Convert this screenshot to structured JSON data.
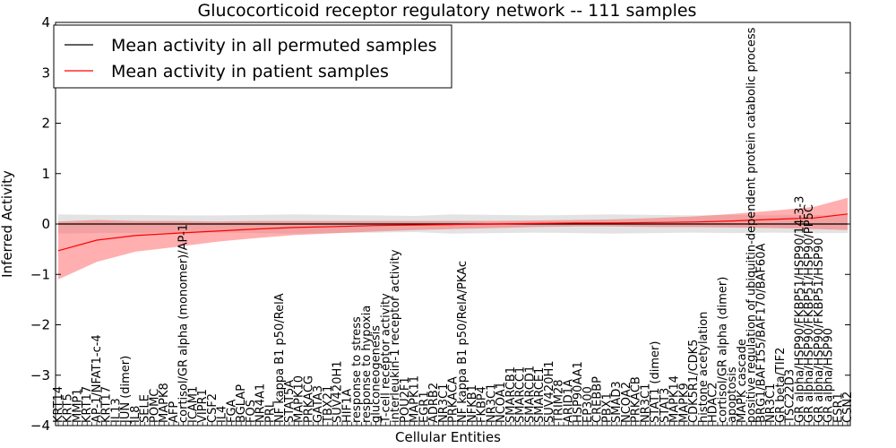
{
  "chart_data": {
    "type": "line",
    "title": "Glucocorticoid receptor regulatory network -- 111 samples",
    "xlabel": "Cellular Entities",
    "ylabel": "Inferred Activity",
    "ylim": [
      -4,
      4
    ],
    "yticks": [
      "−4",
      "−3",
      "−2",
      "−1",
      "0",
      "1",
      "2",
      "3",
      "4"
    ],
    "grid": false,
    "legend_position": "top-left",
    "n_entities": 165,
    "zero_line": "dotted",
    "entity_labels": [
      {
        "i": 0,
        "text": "KRT14"
      },
      {
        "i": 2,
        "text": "KRT5"
      },
      {
        "i": 4,
        "text": "MMP1"
      },
      {
        "i": 6,
        "text": "KRT17"
      },
      {
        "i": 8,
        "text": "AP-1/NFAT1-c-4"
      },
      {
        "i": 10,
        "text": "KRT17"
      },
      {
        "i": 12,
        "text": "IL13"
      },
      {
        "i": 14,
        "text": "JUN (dimer)"
      },
      {
        "i": 16,
        "text": "IL8"
      },
      {
        "i": 18,
        "text": "SELE"
      },
      {
        "i": 20,
        "text": "POMC"
      },
      {
        "i": 22,
        "text": "MAPK8"
      },
      {
        "i": 24,
        "text": "AFP"
      },
      {
        "i": 26,
        "text": "cortisol/GR alpha (monomer)/AP-1"
      },
      {
        "i": 28,
        "text": "ICAM1"
      },
      {
        "i": 30,
        "text": "VIPR1"
      },
      {
        "i": 32,
        "text": "CSF2"
      },
      {
        "i": 34,
        "text": "IL4"
      },
      {
        "i": 36,
        "text": "FGA"
      },
      {
        "i": 38,
        "text": "BGLAP"
      },
      {
        "i": 40,
        "text": "FOS"
      },
      {
        "i": 42,
        "text": "NR4A1"
      },
      {
        "i": 44,
        "text": "PRL"
      },
      {
        "i": 46,
        "text": "NF kappa B1 p50/RelA"
      },
      {
        "i": 48,
        "text": "STAT5A"
      },
      {
        "i": 50,
        "text": "MAPK10"
      },
      {
        "i": 52,
        "text": "PRKACG"
      },
      {
        "i": 54,
        "text": "GATA3"
      },
      {
        "i": 56,
        "text": "TBX21"
      },
      {
        "i": 58,
        "text": "SUV420H1"
      },
      {
        "i": 60,
        "text": "HIF1A"
      },
      {
        "i": 62,
        "text": "response to stress"
      },
      {
        "i": 64,
        "text": "response to hypoxia"
      },
      {
        "i": 66,
        "text": "gluconeogenesis"
      },
      {
        "i": 68,
        "text": "T-cell receptor activity"
      },
      {
        "i": 70,
        "text": "interleukin-1 receptor activity"
      },
      {
        "i": 72,
        "text": "POU2F1"
      },
      {
        "i": 74,
        "text": "MAPK11"
      },
      {
        "i": 76,
        "text": "EGR1"
      },
      {
        "i": 78,
        "text": "ADRB2"
      },
      {
        "i": 80,
        "text": "NR3C1"
      },
      {
        "i": 82,
        "text": "PRKACA"
      },
      {
        "i": 84,
        "text": "NF kappa B1 p50/RelA/PKAc"
      },
      {
        "i": 86,
        "text": "NFKB1"
      },
      {
        "i": 88,
        "text": "FKBP4"
      },
      {
        "i": 90,
        "text": "NR3C1"
      },
      {
        "i": 92,
        "text": "NCOA1"
      },
      {
        "i": 94,
        "text": "SMARCB1"
      },
      {
        "i": 96,
        "text": "SMARCC1"
      },
      {
        "i": 98,
        "text": "SMARCD1"
      },
      {
        "i": 100,
        "text": "SMARCE1"
      },
      {
        "i": 102,
        "text": "SUV420H1"
      },
      {
        "i": 104,
        "text": "TRIM28"
      },
      {
        "i": 106,
        "text": "ARID1A"
      },
      {
        "i": 108,
        "text": "HSP90AA1"
      },
      {
        "i": 110,
        "text": "EP300"
      },
      {
        "i": 112,
        "text": "CREBBP"
      },
      {
        "i": 114,
        "text": "PBX1"
      },
      {
        "i": 116,
        "text": "SMAD3"
      },
      {
        "i": 118,
        "text": "NCOA2"
      },
      {
        "i": 120,
        "text": "PRKACB"
      },
      {
        "i": 122,
        "text": "NR3C1"
      },
      {
        "i": 124,
        "text": "STAT1 (dimer)"
      },
      {
        "i": 126,
        "text": "STAT3"
      },
      {
        "i": 128,
        "text": "MAPK14"
      },
      {
        "i": 130,
        "text": "MAPK9"
      },
      {
        "i": 132,
        "text": "CDK5R1/CDK5"
      },
      {
        "i": 134,
        "text": "histone acetylation"
      },
      {
        "i": 136,
        "text": "HDAC2"
      },
      {
        "i": 138,
        "text": "cortisol/GR alpha (dimer)"
      },
      {
        "i": 140,
        "text": "apoptosis"
      },
      {
        "i": 142,
        "text": "MAPK cascade"
      },
      {
        "i": 144,
        "text": "positive regulation of ubiquitin-dependent protein catabolic process"
      },
      {
        "i": 146,
        "text": "BRG1/BAF155/BAF170/BAF60A"
      },
      {
        "i": 148,
        "text": "NR3C1"
      },
      {
        "i": 150,
        "text": "GR beta/TIF2"
      },
      {
        "i": 152,
        "text": "TSC22D3"
      },
      {
        "i": 154,
        "text": "GR alpha/HSP90/FKBP51/HSP90/14-3-3"
      },
      {
        "i": 156,
        "text": "GR alpha/HSP90/FKBP51/HSP90/PP5C"
      },
      {
        "i": 158,
        "text": "GR alpha/HSP90/FKBP51/HSP90"
      },
      {
        "i": 160,
        "text": "GR alpha/HSP90"
      },
      {
        "i": 162,
        "text": "ESR1"
      },
      {
        "i": 164,
        "text": "CSN2"
      }
    ],
    "series": [
      {
        "name": "Mean activity in all permuted samples",
        "color": "#000000",
        "values": [
          0.0,
          0.0,
          0.0,
          0.0,
          0.0,
          0.0,
          0.0,
          0.0,
          0.0,
          0.0,
          0.0,
          0.0,
          0.0,
          0.0,
          0.0,
          0.0,
          0.0,
          0.0,
          0.0,
          0.0,
          0.0
        ],
        "band_lower": [
          -0.19,
          -0.18,
          -0.18,
          -0.17,
          -0.17,
          -0.18,
          -0.19,
          -0.18,
          -0.17,
          -0.16,
          -0.19,
          -0.18,
          -0.17,
          -0.18,
          -0.19,
          -0.18,
          -0.17,
          -0.18,
          -0.17,
          -0.18,
          -0.18
        ],
        "band_upper": [
          0.19,
          0.18,
          0.18,
          0.17,
          0.17,
          0.18,
          0.19,
          0.18,
          0.17,
          0.16,
          0.19,
          0.18,
          0.17,
          0.18,
          0.19,
          0.18,
          0.17,
          0.18,
          0.17,
          0.18,
          0.18
        ]
      },
      {
        "name": "Mean activity in patient samples",
        "color": "#ff0000",
        "values": [
          -0.53,
          -0.32,
          -0.23,
          -0.18,
          -0.14,
          -0.1,
          -0.07,
          -0.05,
          -0.03,
          -0.02,
          -0.01,
          0.0,
          0.01,
          0.02,
          0.02,
          0.03,
          0.04,
          0.06,
          0.09,
          0.12,
          0.2
        ],
        "band_lower": [
          -1.1,
          -0.75,
          -0.55,
          -0.45,
          -0.35,
          -0.28,
          -0.22,
          -0.18,
          -0.15,
          -0.12,
          -0.1,
          -0.08,
          -0.06,
          -0.05,
          -0.05,
          -0.06,
          -0.06,
          -0.07,
          -0.08,
          -0.1,
          -0.12
        ],
        "band_upper": [
          0.05,
          0.08,
          0.06,
          0.06,
          0.05,
          0.06,
          0.06,
          0.06,
          0.06,
          0.06,
          0.06,
          0.06,
          0.07,
          0.08,
          0.09,
          0.12,
          0.15,
          0.2,
          0.26,
          0.34,
          0.52
        ]
      }
    ],
    "x_positions": [
      0,
      8,
      16,
      25,
      33,
      41,
      49,
      58,
      66,
      74,
      82,
      91,
      99,
      107,
      115,
      124,
      132,
      140,
      148,
      157,
      164
    ]
  }
}
